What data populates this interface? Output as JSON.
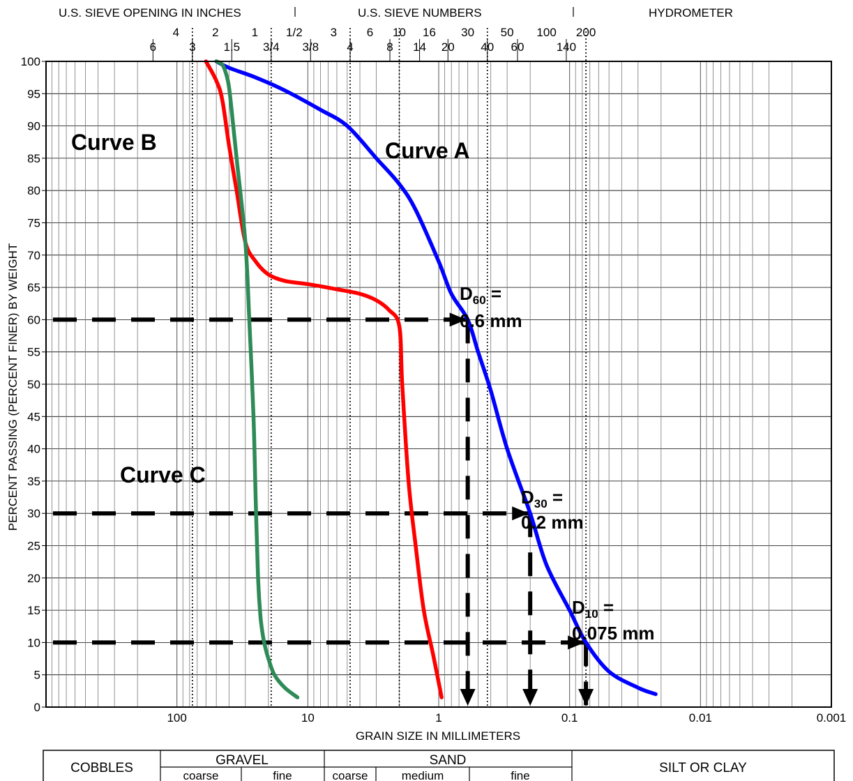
{
  "chart_data": {
    "type": "line",
    "title": "",
    "xlabel": "GRAIN SIZE IN MILLIMETERS",
    "ylabel": "PERCENT PASSING (PERCENT FINER) BY WEIGHT",
    "x_scale": "log",
    "x_reversed": true,
    "xlim": [
      1000,
      0.001
    ],
    "ylim": [
      0,
      100
    ],
    "x_ticks": [
      {
        "v": 100,
        "label": "100"
      },
      {
        "v": 10,
        "label": "10"
      },
      {
        "v": 1,
        "label": "1"
      },
      {
        "v": 0.1,
        "label": "0.1"
      },
      {
        "v": 0.01,
        "label": "0.01"
      },
      {
        "v": 0.001,
        "label": "0.001"
      }
    ],
    "y_ticks": [
      {
        "v": 0,
        "label": "0"
      },
      {
        "v": 5,
        "label": "5"
      },
      {
        "v": 10,
        "label": "10"
      },
      {
        "v": 15,
        "label": "15"
      },
      {
        "v": 20,
        "label": "20"
      },
      {
        "v": 25,
        "label": "25"
      },
      {
        "v": 30,
        "label": "30"
      },
      {
        "v": 35,
        "label": "35"
      },
      {
        "v": 40,
        "label": "40"
      },
      {
        "v": 45,
        "label": "45"
      },
      {
        "v": 50,
        "label": "50"
      },
      {
        "v": 55,
        "label": "55"
      },
      {
        "v": 60,
        "label": "60"
      },
      {
        "v": 65,
        "label": "65"
      },
      {
        "v": 70,
        "label": "70"
      },
      {
        "v": 75,
        "label": "75"
      },
      {
        "v": 80,
        "label": "80"
      },
      {
        "v": 85,
        "label": "85"
      },
      {
        "v": 90,
        "label": "90"
      },
      {
        "v": 95,
        "label": "95"
      },
      {
        "v": 100,
        "label": "100"
      }
    ],
    "sieve_header": {
      "inches_title": "U.S. SIEVE OPENING IN INCHES",
      "numbers_title": "U.S. SIEVE NUMBERS",
      "hydrometer_title": "HYDROMETER",
      "upper": [
        {
          "label": "4",
          "mm": 101.6
        },
        {
          "label": "2",
          "mm": 50.8
        },
        {
          "label": "1",
          "mm": 25.4
        },
        {
          "label": "1/2",
          "mm": 12.7
        },
        {
          "label": "3",
          "mm": 6.35
        },
        {
          "label": "6",
          "mm": 3.35
        },
        {
          "label": "10",
          "mm": 2.0
        },
        {
          "label": "16",
          "mm": 1.18
        },
        {
          "label": "30",
          "mm": 0.6
        },
        {
          "label": "50",
          "mm": 0.3
        },
        {
          "label": "100",
          "mm": 0.15
        },
        {
          "label": "200",
          "mm": 0.075
        }
      ],
      "lower": [
        {
          "label": "6",
          "mm": 152.4
        },
        {
          "label": "3",
          "mm": 76.2
        },
        {
          "label": "1.5",
          "mm": 38.1
        },
        {
          "label": "3/4",
          "mm": 19.05
        },
        {
          "label": "3/8",
          "mm": 9.525
        },
        {
          "label": "4",
          "mm": 4.75
        },
        {
          "label": "8",
          "mm": 2.36
        },
        {
          "label": "14",
          "mm": 1.4
        },
        {
          "label": "20",
          "mm": 0.85
        },
        {
          "label": "40",
          "mm": 0.425
        },
        {
          "label": "60",
          "mm": 0.25
        },
        {
          "label": "140",
          "mm": 0.106
        }
      ],
      "dotted_lines_mm": [
        76.2,
        19.05,
        4.75,
        2.0,
        0.425,
        0.075
      ]
    },
    "series": [
      {
        "name": "Curve A",
        "color": "#0000ff",
        "x": [
          50,
          40,
          25,
          15,
          8,
          5,
          3,
          2,
          1.5,
          1,
          0.8,
          0.6,
          0.5,
          0.4,
          0.3,
          0.2,
          0.15,
          0.1,
          0.075,
          0.05,
          0.03,
          0.022
        ],
        "y": [
          100,
          99,
          97.5,
          95.5,
          92.5,
          90,
          85,
          81,
          77,
          69,
          64,
          60,
          55,
          49,
          40,
          30,
          22,
          15,
          10,
          5.5,
          3,
          2
        ]
      },
      {
        "name": "Curve B",
        "color": "#ff0000",
        "x": [
          60,
          50,
          45,
          40,
          35,
          30,
          25,
          20,
          15,
          10,
          6,
          4,
          3,
          2.4,
          2.0,
          1.9,
          1.7,
          1.5,
          1.3,
          1.1,
          0.95
        ],
        "y": [
          100,
          97,
          94,
          87,
          80,
          72,
          69,
          67,
          66,
          65.5,
          64.7,
          64,
          63,
          61.5,
          59,
          50,
          35,
          25,
          15,
          8,
          1.5
        ]
      },
      {
        "name": "Curve C",
        "color": "#2e8b57",
        "x": [
          50,
          45,
          42,
          40,
          38,
          35,
          30,
          28,
          26,
          25,
          24,
          23,
          22,
          21,
          20,
          18,
          15,
          12
        ],
        "y": [
          100,
          99.5,
          98,
          96,
          92,
          85,
          72,
          60,
          45,
          32,
          20,
          14,
          11,
          9,
          7.5,
          5,
          3,
          1.5
        ]
      }
    ],
    "reference_lines": [
      {
        "y": 60,
        "x_from": 1000,
        "x_to": 0.6,
        "x_drop": 0.6,
        "label_line1": "D",
        "label_sub": "60",
        "label_tail": " =",
        "label_line2": "0.6 mm"
      },
      {
        "y": 30,
        "x_from": 1000,
        "x_to": 0.2,
        "x_drop": 0.2,
        "label_line1": "D",
        "label_sub": "30",
        "label_tail": " =",
        "label_line2": "0.2 mm"
      },
      {
        "y": 10,
        "x_from": 1000,
        "x_to": 0.075,
        "x_drop": 0.075,
        "label_line1": "D",
        "label_sub": "10",
        "label_tail": " =",
        "label_line2": "0.075 mm"
      }
    ],
    "grid": true,
    "classification": {
      "cobbles": "COBBLES",
      "gravel": "GRAVEL",
      "sand": "SAND",
      "silt_clay": "SILT OR CLAY",
      "gravel_coarse": "coarse",
      "gravel_fine": "fine",
      "sand_coarse": "coarse",
      "sand_medium": "medium",
      "sand_fine": "fine"
    }
  }
}
